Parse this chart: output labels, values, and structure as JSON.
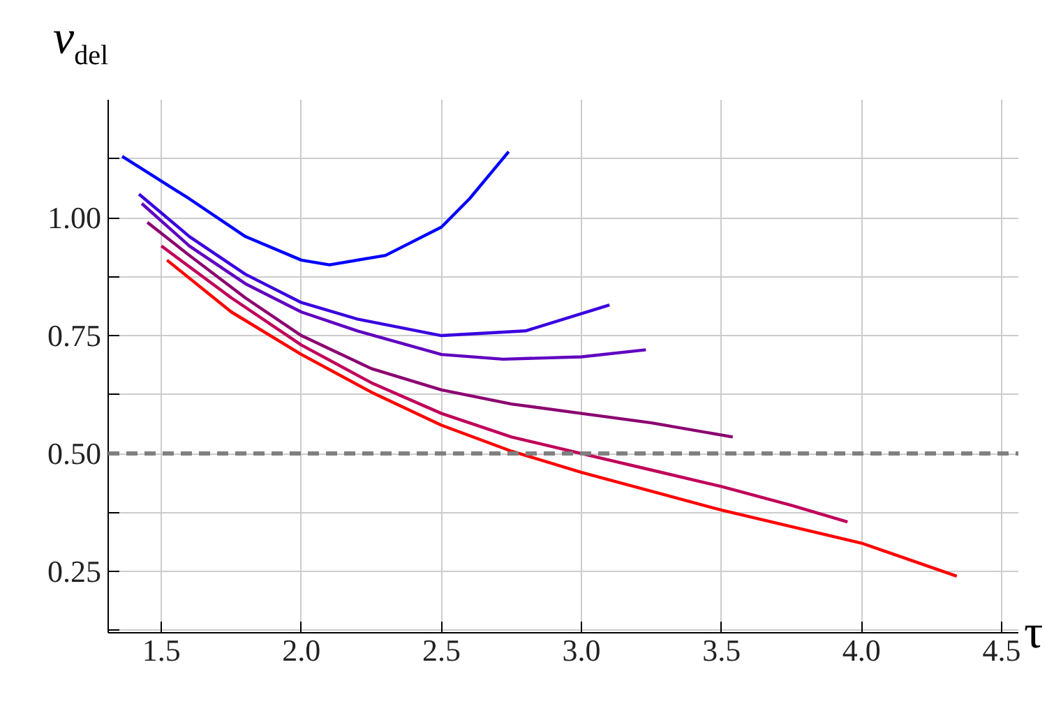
{
  "chart_data": {
    "type": "line",
    "ylabel": "ν$_{del}$",
    "xlabel": "τ",
    "xlim": [
      1.31,
      4.56
    ],
    "ylim": [
      0.12,
      1.25
    ],
    "xticks": [
      1.5,
      {
        "value": 2,
        "label": "2.0"
      },
      2.5,
      {
        "value": 3,
        "label": "3.0"
      },
      3.5,
      {
        "value": 4,
        "label": "4.0"
      },
      4.5
    ],
    "yticks": [
      {
        "value": 0.125,
        "label": null
      },
      {
        "value": 0.25,
        "label": "0.25"
      },
      {
        "value": 0.375,
        "label": null
      },
      {
        "value": 0.5,
        "label": "0.50"
      },
      {
        "value": 0.625,
        "label": null
      },
      {
        "value": 0.75,
        "label": "0.75"
      },
      {
        "value": 0.875,
        "label": null
      },
      {
        "value": 1.0,
        "label": "1.00"
      },
      {
        "value": 1.125,
        "label": null
      }
    ],
    "grid": true,
    "marker": "none",
    "line_style": "solid",
    "ref_lines": [
      {
        "axis": "y",
        "value": 0.5,
        "color": "#808080",
        "line_style": "dashed"
      }
    ],
    "series": [
      {
        "color": "#0000ff",
        "x": [
          1.36,
          1.6,
          1.8,
          2.0,
          2.1,
          2.3,
          2.5,
          2.6,
          2.74
        ],
        "values": [
          1.13,
          1.04,
          0.96,
          0.91,
          0.9,
          0.92,
          0.98,
          1.04,
          1.14
        ]
      },
      {
        "color": "#3a00e0",
        "x": [
          1.42,
          1.6,
          1.8,
          2.0,
          2.2,
          2.5,
          2.8,
          3.1
        ],
        "values": [
          1.05,
          0.96,
          0.88,
          0.82,
          0.785,
          0.75,
          0.76,
          0.815
        ]
      },
      {
        "color": "#6000c0",
        "x": [
          1.43,
          1.6,
          1.8,
          2.0,
          2.2,
          2.5,
          2.72,
          3.0,
          3.23
        ],
        "values": [
          1.03,
          0.94,
          0.86,
          0.8,
          0.76,
          0.71,
          0.7,
          0.705,
          0.72
        ]
      },
      {
        "color": "#8b0070",
        "x": [
          1.45,
          1.6,
          1.8,
          2.0,
          2.25,
          2.5,
          2.75,
          3.0,
          3.25,
          3.54
        ],
        "values": [
          0.99,
          0.92,
          0.83,
          0.75,
          0.68,
          0.635,
          0.605,
          0.585,
          0.565,
          0.535
        ]
      },
      {
        "color": "#c0005a",
        "x": [
          1.5,
          1.75,
          2.0,
          2.25,
          2.5,
          2.75,
          3.0,
          3.25,
          3.5,
          3.75,
          3.95
        ],
        "values": [
          0.94,
          0.83,
          0.73,
          0.65,
          0.585,
          0.535,
          0.5,
          0.465,
          0.43,
          0.39,
          0.355
        ]
      },
      {
        "color": "#ff0000",
        "x": [
          1.52,
          1.75,
          2.0,
          2.25,
          2.5,
          2.75,
          3.0,
          3.25,
          3.5,
          3.75,
          4.0,
          4.34
        ],
        "values": [
          0.91,
          0.8,
          0.71,
          0.63,
          0.56,
          0.505,
          0.46,
          0.42,
          0.38,
          0.345,
          0.31,
          0.24
        ]
      }
    ]
  }
}
